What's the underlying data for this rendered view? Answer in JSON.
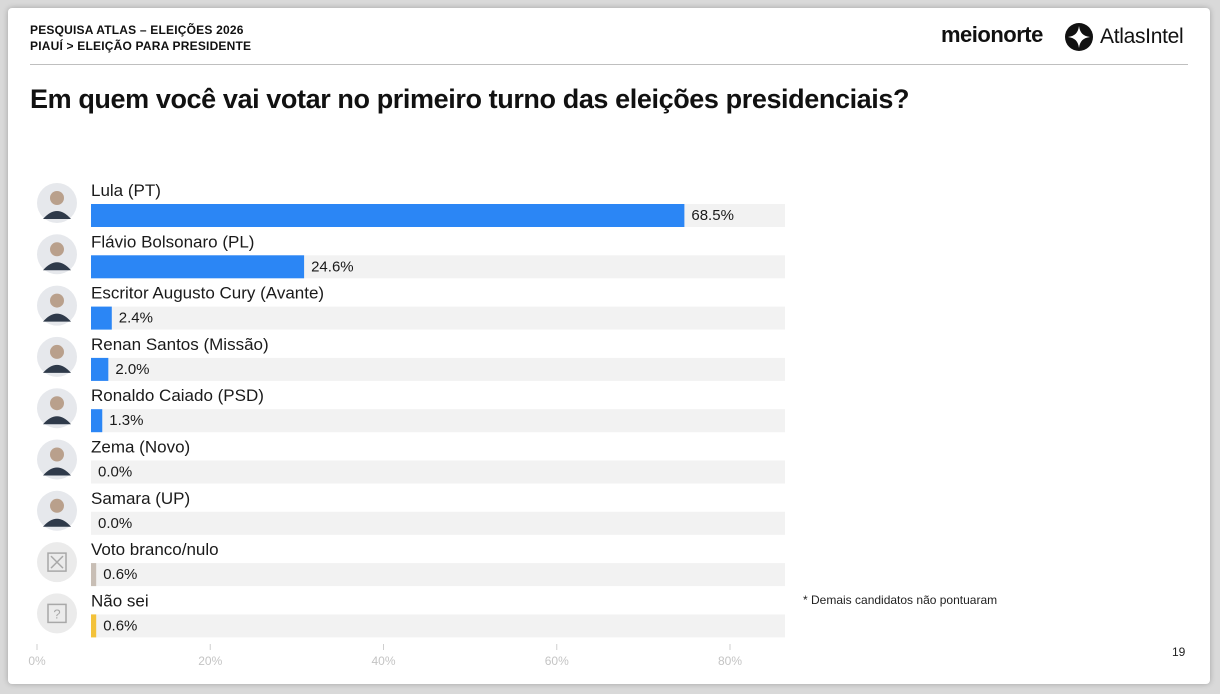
{
  "header": {
    "survey": "PESQUISA ATLAS – ELEIÇÕES 2026",
    "scope": "PIAUÍ > ELEIÇÃO PARA PRESIDENTE"
  },
  "logos": {
    "partner": "meionorte",
    "brand": "AtlasIntel"
  },
  "question": "Em quem você vai votar no primeiro turno das eleições presidenciais?",
  "footnote": "* Demais candidatos não pontuaram",
  "page_number": "19",
  "chart_data": {
    "type": "bar",
    "orientation": "horizontal",
    "title": "",
    "xlabel": "",
    "ylabel": "",
    "xlim": [
      0,
      80
    ],
    "ticks": [
      0,
      20,
      40,
      60,
      80
    ],
    "tick_labels": [
      "0%",
      "20%",
      "40%",
      "60%",
      "80%"
    ],
    "grid": false,
    "categories": [
      "Lula (PT)",
      "Flávio Bolsonaro (PL)",
      "Escritor Augusto Cury (Avante)",
      "Renan Santos (Missão)",
      "Ronaldo Caiado (PSD)",
      "Zema (Novo)",
      "Samara (UP)",
      "Voto branco/nulo",
      "Não sei"
    ],
    "values": [
      68.5,
      24.6,
      2.4,
      2.0,
      1.3,
      0.0,
      0.0,
      0.6,
      0.6
    ],
    "value_labels": [
      "68.5%",
      "24.6%",
      "2.4%",
      "2.0%",
      "1.3%",
      "0.0%",
      "0.0%",
      "0.6%",
      "0.6%"
    ],
    "bar_colors": [
      "#2b86f5",
      "#2b86f5",
      "#2b86f5",
      "#2b86f5",
      "#2b86f5",
      "#2b86f5",
      "#2b86f5",
      "#c8beb5",
      "#f3c23a"
    ],
    "track_color": "#f2f2f2",
    "avatar_icons": [
      "person-avatar",
      "person-avatar",
      "person-avatar",
      "person-avatar",
      "person-avatar",
      "person-avatar",
      "person-avatar",
      "blank-vote-icon",
      "question-icon"
    ]
  }
}
